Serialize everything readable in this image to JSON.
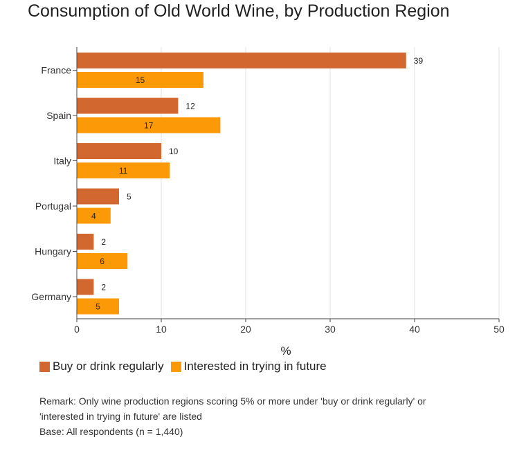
{
  "title": "Consumption of Old World Wine, by Production Region",
  "chart_data": {
    "type": "bar",
    "orientation": "horizontal",
    "categories": [
      "France",
      "Spain",
      "Italy",
      "Portugal",
      "Hungary",
      "Germany"
    ],
    "series": [
      {
        "name": "Buy or drink regularly",
        "color": "#d2672f",
        "values": [
          39,
          12,
          10,
          5,
          2,
          2
        ],
        "label_position": "outside"
      },
      {
        "name": "Interested in trying in future",
        "color": "#fb9906",
        "values": [
          15,
          17,
          11,
          4,
          6,
          5
        ],
        "label_position": "inside"
      }
    ],
    "xlabel": "%",
    "ylabel": "",
    "xlim": [
      0,
      50
    ],
    "xticks": [
      0,
      10,
      20,
      30,
      40,
      50
    ],
    "grid": true,
    "legend_position": "bottom-left"
  },
  "remarks": {
    "line1": "Remark: Only wine production regions scoring 5% or more under 'buy or drink regularly' or",
    "line2": "'interested in trying in future' are listed",
    "base": "Base: All respondents (n = 1,440)"
  }
}
